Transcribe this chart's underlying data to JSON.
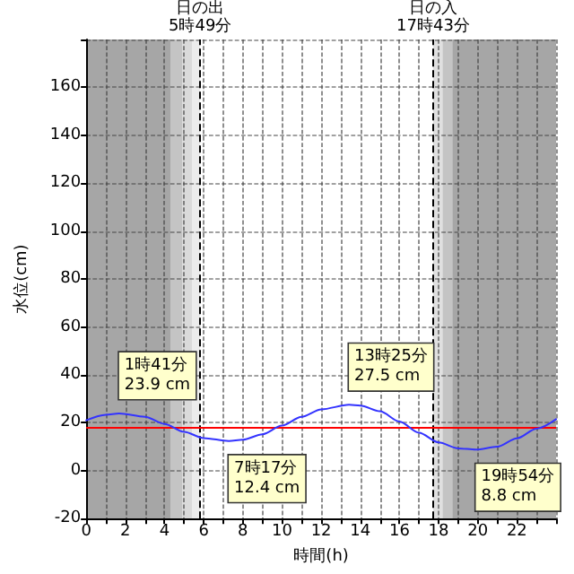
{
  "chart_data": {
    "type": "line",
    "xlabel": "時間(h)",
    "ylabel": "水位(cm)",
    "series": [
      {
        "color": "#3333ff",
        "x": [
          0,
          1,
          1.68,
          3,
          4,
          5,
          6,
          7.28,
          8,
          9,
          10,
          11,
          12,
          13.42,
          14,
          15,
          16,
          17,
          18,
          19,
          19.9,
          21,
          22,
          23,
          24
        ],
        "values": [
          21,
          23.3,
          23.9,
          22.5,
          19.5,
          16.2,
          13.6,
          12.4,
          12.9,
          15.2,
          18.8,
          22.5,
          25.6,
          27.5,
          27.2,
          24.8,
          20.5,
          15.8,
          11.8,
          9.3,
          8.8,
          10,
          13.5,
          17.5,
          21.5
        ]
      }
    ],
    "xlim": [
      0,
      24
    ],
    "xticks": [
      0,
      {
        "value": 1,
        "label": null
      },
      2,
      {
        "value": 3,
        "label": null
      },
      4,
      {
        "value": 5,
        "label": null
      },
      6,
      {
        "value": 7,
        "label": null
      },
      8,
      {
        "value": 9,
        "label": null
      },
      10,
      {
        "value": 11,
        "label": null
      },
      12,
      {
        "value": 13,
        "label": null
      },
      14,
      {
        "value": 15,
        "label": null
      },
      16,
      {
        "value": 17,
        "label": null
      },
      18,
      {
        "value": 19,
        "label": null
      },
      20,
      {
        "value": 21,
        "label": null
      },
      22,
      {
        "value": 23,
        "label": null
      },
      {
        "value": 24,
        "label": null
      }
    ],
    "ylim": [
      -20,
      180
    ],
    "yticks": [
      -20,
      0,
      20,
      40,
      60,
      80,
      100,
      120,
      140,
      160,
      {
        "value": 180,
        "label": null
      }
    ],
    "grid": true,
    "marker": "none",
    "line_style": "solid",
    "bands": [
      {
        "axis": "x",
        "from": 0,
        "to": 4.3,
        "color": "#a6a6a6"
      },
      {
        "axis": "x",
        "from": 4.3,
        "to": 4.9,
        "color": "#c4c4c4"
      },
      {
        "axis": "x",
        "from": 4.9,
        "to": 5.4,
        "color": "#dadada"
      },
      {
        "axis": "x",
        "from": 5.4,
        "to": 5.82,
        "color": "#ececec"
      },
      {
        "axis": "x",
        "from": 17.72,
        "to": 18.2,
        "color": "#e0e0e0"
      },
      {
        "axis": "x",
        "from": 18.2,
        "to": 18.7,
        "color": "#c4c4c4"
      },
      {
        "axis": "x",
        "from": 18.7,
        "to": 24,
        "color": "#a6a6a6"
      }
    ],
    "ref_lines": [
      {
        "axis": "x",
        "value": 5.82,
        "label": "日の出\n5時49分",
        "color": "#000000",
        "line_style": "dashed"
      },
      {
        "axis": "x",
        "value": 17.72,
        "label": "日の入\n17時43分",
        "color": "#000000",
        "line_style": "dashed"
      },
      {
        "axis": "y",
        "value": 18,
        "color": "#ff0000",
        "line_style": "solid"
      }
    ],
    "annotations": [
      {
        "text": "1時41分\n23.9 cm",
        "x": 1.68,
        "y": 23.9
      },
      {
        "text": "7時17分\n12.4 cm",
        "x": 7.28,
        "y": 12.4
      },
      {
        "text": "13時25分\n27.5 cm",
        "x": 13.42,
        "y": 27.5
      },
      {
        "text": "19時54分\n8.8 cm",
        "x": 19.9,
        "y": 8.8
      }
    ]
  }
}
